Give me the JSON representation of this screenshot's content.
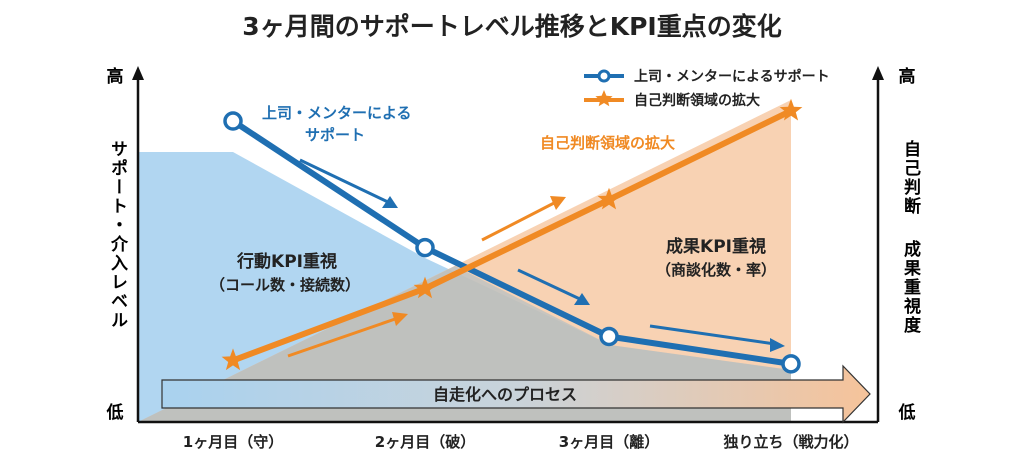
{
  "title": "3ヶ月間のサポートレベル推移とKPI重点の変化",
  "left_axis": {
    "high": "高",
    "low": "低",
    "label": "サポート・介入レベル"
  },
  "right_axis": {
    "high": "高",
    "low": "低",
    "label_1": "自己判断",
    "label_2": "成果重視度"
  },
  "legend": [
    {
      "label": "上司・メンターによるサポート",
      "color": "#1f6fb2",
      "marker": "circle"
    },
    {
      "label": "自己判断領域の拡大",
      "color": "#f08a24",
      "marker": "star"
    }
  ],
  "annotations": {
    "support_line_1": "上司・メンターによる",
    "support_line_2": "サポート",
    "autonomy": "自己判断領域の拡大",
    "left_zone_title": "行動KPI重視",
    "left_zone_sub": "（コール数・接続数）",
    "right_zone_title": "成果KPI重視",
    "right_zone_sub": "（商談化数・率）",
    "process_arrow": "自走化へのプロセス"
  },
  "colors": {
    "support": "#1f6fb2",
    "autonomy": "#f08a24",
    "support_area": "#a9d2ef",
    "outcome_area": "#f6c39a"
  },
  "chart_data": {
    "type": "line",
    "categories": [
      "1ヶ月目（守）",
      "2ヶ月目（破）",
      "3ヶ月目（離）",
      "独り立ち（戦力化）"
    ],
    "ylim": [
      0,
      1
    ],
    "series": [
      {
        "name": "上司・メンターによるサポート",
        "values": [
          0.88,
          0.51,
          0.25,
          0.17
        ]
      },
      {
        "name": "自己判断領域の拡大",
        "values": [
          0.18,
          0.39,
          0.65,
          0.91
        ]
      }
    ]
  }
}
